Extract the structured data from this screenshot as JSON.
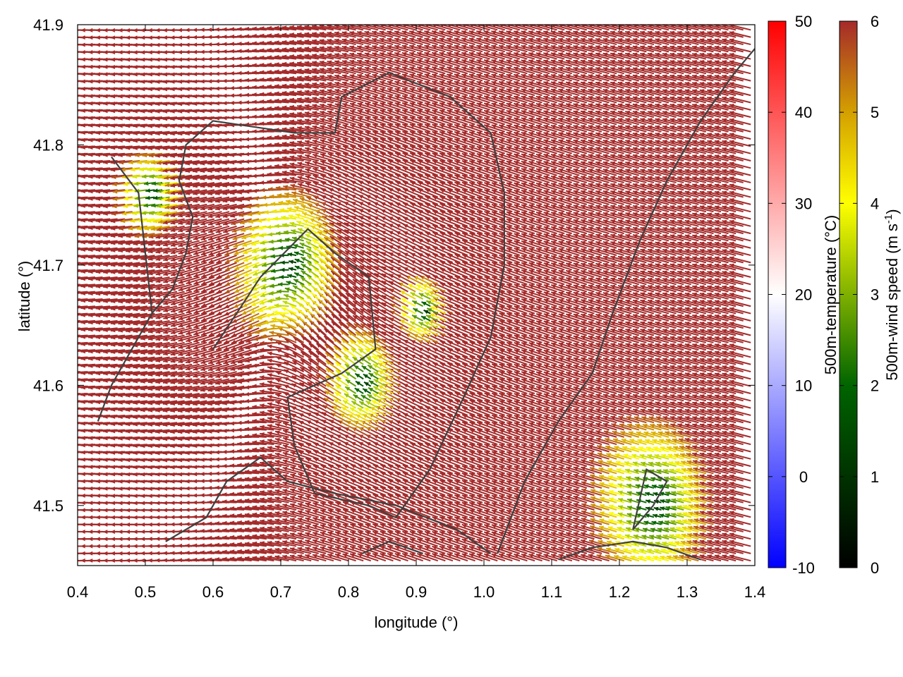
{
  "chart_data": {
    "type": "vector-field",
    "xlabel": "longitude (°)",
    "ylabel": "latitude (°)",
    "xlim": [
      0.4,
      1.4
    ],
    "ylim": [
      41.45,
      41.9
    ],
    "x_ticks": [
      "0.4",
      "0.5",
      "0.6",
      "0.7",
      "0.8",
      "0.9",
      "1.0",
      "1.1",
      "1.2",
      "1.3",
      "1.4"
    ],
    "y_ticks": [
      "41.5",
      "41.6",
      "41.7",
      "41.8",
      "41.9"
    ],
    "grid": false,
    "temperature_colorbar": {
      "label": "500m-temperature (°C)",
      "range": [
        -10,
        50
      ],
      "ticks": [
        "-10",
        "0",
        "10",
        "20",
        "30",
        "40",
        "50"
      ],
      "colors": [
        "#0000ff",
        "#ffffff",
        "#ff0000"
      ]
    },
    "wind_colorbar": {
      "label_main": "500m-wind speed (m s",
      "label_sup": "-1",
      "label_end": ")",
      "range": [
        0,
        6
      ],
      "ticks": [
        "0",
        "1",
        "2",
        "3",
        "4",
        "5",
        "6"
      ],
      "colors": [
        "#000000",
        "#006400",
        "#7fb000",
        "#ffff00",
        "#d4a000",
        "#a52a2a"
      ]
    },
    "calm_regions": [
      {
        "lon": 0.72,
        "lat": 41.7,
        "r": 0.09
      },
      {
        "lon": 0.52,
        "lat": 41.76,
        "r": 0.05
      },
      {
        "lon": 0.83,
        "lat": 41.6,
        "r": 0.06
      },
      {
        "lon": 0.92,
        "lat": 41.66,
        "r": 0.04
      },
      {
        "lon": 1.26,
        "lat": 41.5,
        "r": 0.1
      }
    ],
    "coastline_1": [
      [
        0.6,
        41.63
      ],
      [
        0.67,
        41.69
      ],
      [
        0.74,
        41.73
      ],
      [
        0.78,
        41.71
      ],
      [
        0.83,
        41.69
      ],
      [
        0.84,
        41.63
      ],
      [
        0.79,
        41.61
      ],
      [
        0.71,
        41.59
      ],
      [
        0.72,
        41.55
      ],
      [
        0.75,
        41.51
      ],
      [
        0.83,
        41.5
      ],
      [
        0.87,
        41.49
      ],
      [
        0.92,
        41.53
      ],
      [
        0.97,
        41.59
      ],
      [
        1.01,
        41.64
      ],
      [
        1.03,
        41.7
      ],
      [
        1.03,
        41.76
      ],
      [
        1.01,
        41.81
      ],
      [
        0.95,
        41.84
      ],
      [
        0.86,
        41.86
      ],
      [
        0.79,
        41.84
      ],
      [
        0.78,
        41.81
      ],
      [
        0.72,
        41.81
      ],
      [
        0.6,
        41.82
      ],
      [
        0.56,
        41.8
      ],
      [
        0.55,
        41.77
      ],
      [
        0.57,
        41.74
      ],
      [
        0.56,
        41.71
      ],
      [
        0.54,
        41.68
      ],
      [
        0.51,
        41.66
      ],
      [
        0.5,
        41.71
      ],
      [
        0.49,
        41.76
      ],
      [
        0.45,
        41.79
      ]
    ],
    "coastline_2": [
      [
        0.43,
        41.57
      ],
      [
        0.45,
        41.6
      ],
      [
        0.48,
        41.63
      ],
      [
        0.51,
        41.66
      ]
    ],
    "coastline_3": [
      [
        0.53,
        41.47
      ],
      [
        0.59,
        41.49
      ],
      [
        0.62,
        41.52
      ],
      [
        0.67,
        41.54
      ],
      [
        0.71,
        41.52
      ],
      [
        0.78,
        41.51
      ],
      [
        0.87,
        41.5
      ],
      [
        0.96,
        41.48
      ],
      [
        1.01,
        41.46
      ]
    ],
    "coastline_4": [
      [
        1.02,
        41.46
      ],
      [
        1.06,
        41.52
      ],
      [
        1.11,
        41.57
      ],
      [
        1.16,
        41.61
      ],
      [
        1.19,
        41.66
      ],
      [
        1.23,
        41.72
      ],
      [
        1.27,
        41.77
      ],
      [
        1.32,
        41.82
      ],
      [
        1.37,
        41.86
      ],
      [
        1.4,
        41.88
      ]
    ],
    "coastline_5": [
      [
        1.22,
        41.48
      ],
      [
        1.25,
        41.5
      ],
      [
        1.27,
        41.52
      ],
      [
        1.24,
        41.53
      ],
      [
        1.22,
        41.48
      ]
    ],
    "coastline_6": [
      [
        0.82,
        41.46
      ],
      [
        0.86,
        41.47
      ],
      [
        0.91,
        41.46
      ]
    ],
    "coastline_7": [
      [
        1.11,
        41.455
      ],
      [
        1.16,
        41.465
      ],
      [
        1.22,
        41.47
      ],
      [
        1.27,
        41.465
      ],
      [
        1.32,
        41.455
      ]
    ]
  }
}
